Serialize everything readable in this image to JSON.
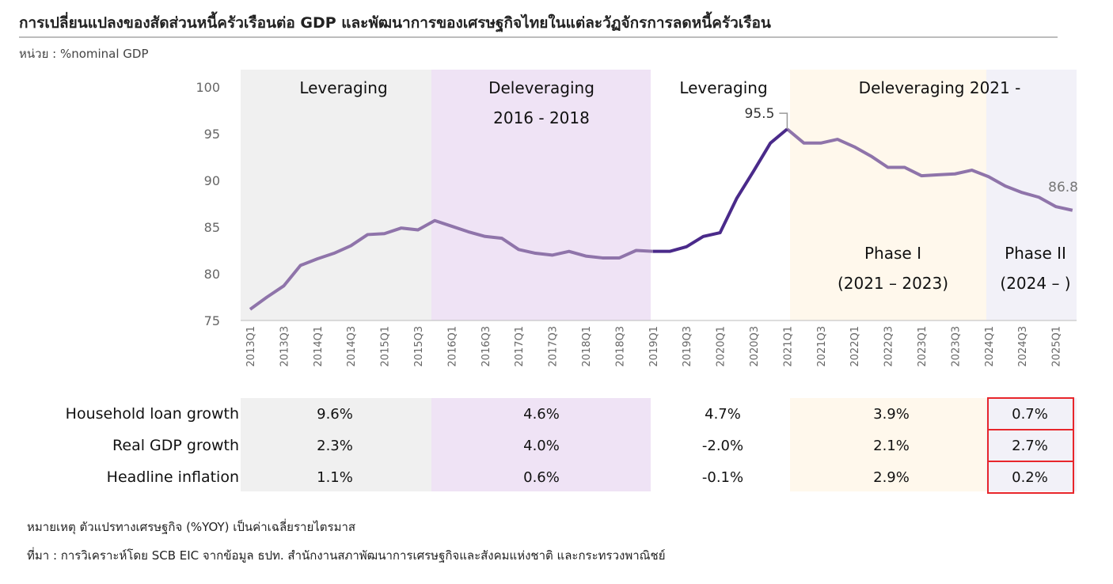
{
  "title": "การเปลี่ยนแปลงของสัดส่วนหนี้ครัวเรือนต่อ  GDP และพัฒนาการของเศรษฐกิจไทยในแต่ละวัฏจักรการลดหนี้ครัวเรือน",
  "unit": "หน่วย : %nominal GDP",
  "chart_data": {
    "type": "line",
    "ylim": [
      75,
      100
    ],
    "yticks": [
      75,
      80,
      85,
      90,
      95,
      100
    ],
    "x": [
      "2013Q1",
      "2013Q2",
      "2013Q3",
      "2013Q4",
      "2014Q1",
      "2014Q2",
      "2014Q3",
      "2014Q4",
      "2015Q1",
      "2015Q2",
      "2015Q3",
      "2015Q4",
      "2016Q1",
      "2016Q2",
      "2016Q3",
      "2016Q4",
      "2017Q1",
      "2017Q2",
      "2017Q3",
      "2017Q4",
      "2018Q1",
      "2018Q2",
      "2018Q3",
      "2018Q4",
      "2019Q1",
      "2019Q2",
      "2019Q3",
      "2019Q4",
      "2020Q1",
      "2020Q2",
      "2020Q3",
      "2020Q4",
      "2021Q1",
      "2021Q2",
      "2021Q3",
      "2021Q4",
      "2022Q1",
      "2022Q2",
      "2022Q3",
      "2022Q4",
      "2023Q1",
      "2023Q2",
      "2023Q3",
      "2023Q4",
      "2024Q1",
      "2024Q2",
      "2024Q3",
      "2024Q4",
      "2025Q1",
      "2025Q2"
    ],
    "xtick_labels": [
      "2013Q1",
      "2013Q3",
      "2014Q1",
      "2014Q3",
      "2015Q1",
      "2015Q3",
      "2016Q1",
      "2016Q3",
      "2017Q1",
      "2017Q3",
      "2018Q1",
      "2018Q3",
      "2019Q1",
      "2019Q3",
      "2020Q1",
      "2020Q3",
      "2021Q1",
      "2021Q3",
      "2022Q1",
      "2022Q3",
      "2023Q1",
      "2023Q3",
      "2024Q1",
      "2024Q3",
      "2025Q1"
    ],
    "values": [
      76.2,
      77.5,
      78.7,
      80.9,
      81.6,
      82.2,
      83.0,
      84.2,
      84.3,
      84.9,
      84.7,
      85.7,
      85.1,
      84.5,
      84.0,
      83.8,
      82.6,
      82.2,
      82.0,
      82.4,
      81.9,
      81.7,
      81.7,
      82.5,
      82.4,
      82.4,
      82.9,
      84.0,
      84.4,
      88.1,
      91.0,
      94.0,
      95.5,
      94.0,
      94.0,
      94.4,
      93.6,
      92.6,
      91.4,
      91.4,
      90.5,
      90.6,
      90.7,
      91.1,
      90.4,
      89.4,
      88.7,
      88.2,
      87.2,
      86.8
    ],
    "annotations": [
      {
        "x": "2021Q1",
        "label": "95.5"
      },
      {
        "x": "2025Q2",
        "label": "86.8"
      }
    ],
    "colors": {
      "light_line": "#8f74aa",
      "dark_line": "#4a2a8a"
    },
    "periods": [
      {
        "lines": [
          "Leveraging"
        ],
        "start": "2013Q1",
        "end": "2015Q4",
        "color": "#f0f0f0"
      },
      {
        "lines": [
          "Deleveraging",
          "2016 - 2018"
        ],
        "start": "2015Q4",
        "end": "2019Q1",
        "color": "#efe3f5"
      },
      {
        "lines": [
          "Leveraging"
        ],
        "start": "2019Q1",
        "end": "2021Q2",
        "color": "#ffffff"
      },
      {
        "lines": [
          "Deleveraging 2021 -"
        ],
        "start": "2021Q2",
        "end": "2024Q1",
        "color": "#fff8ec",
        "sub": [
          "Phase I",
          "(2021 – 2023)"
        ]
      },
      {
        "lines": [],
        "start": "2024Q1",
        "end": "2025Q2",
        "color": "#f2f1f8",
        "sub": [
          "Phase II",
          "(2024 – )"
        ]
      }
    ]
  },
  "table": {
    "rows": [
      {
        "label": "Household loan growth",
        "values": [
          "9.6%",
          "4.6%",
          "4.7%",
          "3.9%",
          "0.7%"
        ]
      },
      {
        "label": "Real GDP growth",
        "values": [
          "2.3%",
          "4.0%",
          "-2.0%",
          "2.1%",
          "2.7%"
        ]
      },
      {
        "label": "Headline inflation",
        "values": [
          "1.1%",
          "0.6%",
          "-0.1%",
          "2.9%",
          "0.2%"
        ]
      }
    ],
    "highlight_color": "#e8262b"
  },
  "note": "หมายเหตุ ตัวแปรทางเศรษฐกิจ (%YOY) เป็นค่าเฉลี่ยรายไตรมาส",
  "source": "ที่มา : การวิเคราะห์โดย SCB EIC จากข้อมูล ธปท. สำนักงานสภาพัฒนาการเศรษฐกิจและสังคมแห่งชาติ และกระทรวงพาณิชย์"
}
